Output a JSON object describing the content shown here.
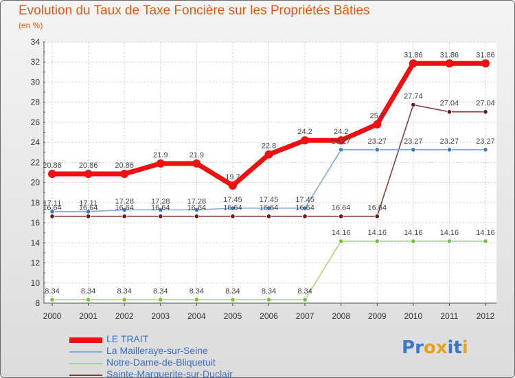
{
  "title": "Evolution du Taux de Taxe Foncière sur les Propriétés Bâties",
  "subtitle": "(en %)",
  "logo": {
    "text": "Proxiti",
    "letters": [
      "P",
      "r",
      "o",
      "x",
      "i",
      "t",
      "i"
    ],
    "colors": [
      "#3a78c8",
      "#3a78c8",
      "#e8a020",
      "#e8a020",
      "#3a78c8",
      "#3a78c8",
      "#e8a020"
    ]
  },
  "chart_data": {
    "type": "line",
    "title": "Evolution du Taux de Taxe Foncière sur les Propriétés Bâties",
    "xlabel": "",
    "ylabel": "(en %)",
    "x": [
      "2000",
      "2001",
      "2002",
      "2003",
      "2004",
      "2005",
      "2006",
      "2007",
      "2008",
      "2009",
      "2010",
      "2011",
      "2012"
    ],
    "ylim": [
      8,
      34
    ],
    "yticks": [
      8,
      10,
      12,
      14,
      16,
      18,
      20,
      22,
      24,
      26,
      28,
      30,
      32,
      34
    ],
    "grid": true,
    "legend_position": "bottom-left",
    "series": [
      {
        "name": "LE TRAIT",
        "color": "#ee1111",
        "marker": "#ee1111",
        "values": [
          20.86,
          20.86,
          20.86,
          21.9,
          21.9,
          19.7,
          22.8,
          24.2,
          24.2,
          25.8,
          31.86,
          31.86,
          31.86
        ],
        "labels": [
          "20.86",
          "20.86",
          "20.86",
          "21.9",
          "21.9",
          "19.7",
          "22.8",
          "24.2",
          "24.2",
          "25.8",
          "31.86",
          "31.86",
          "31.86"
        ]
      },
      {
        "name": "La Mailleraye-sur-Seine",
        "color": "#80a8d8",
        "marker": "#3a78c8",
        "values": [
          17.11,
          17.11,
          17.28,
          17.28,
          17.28,
          17.45,
          17.45,
          17.45,
          23.27,
          23.27,
          23.27,
          23.27,
          23.27
        ],
        "labels": [
          "17.11",
          "17.11",
          "17.28",
          "17.28",
          "17.28",
          "17.45",
          "17.45",
          "17.45",
          "23.27",
          "23.27",
          "23.27",
          "23.27",
          "23.27"
        ]
      },
      {
        "name": "Notre-Dame-de-Bliquetuit",
        "color": "#a8d878",
        "marker": "#78c040",
        "values": [
          8.34,
          8.34,
          8.34,
          8.34,
          8.34,
          8.34,
          8.34,
          8.34,
          14.16,
          14.16,
          14.16,
          14.16,
          14.16
        ],
        "labels": [
          "8.34",
          "8.34",
          "8.34",
          "8.34",
          "8.34",
          "8.34",
          "8.34",
          "8.34",
          "14.16",
          "14.16",
          "14.16",
          "14.16",
          "14.16"
        ]
      },
      {
        "name": "Sainte-Marguerite-sur-Duclair",
        "color": "#8a3a3a",
        "marker": "#6a1a1a",
        "values": [
          16.64,
          16.64,
          16.64,
          16.64,
          16.64,
          16.64,
          16.64,
          16.64,
          16.64,
          16.64,
          27.74,
          27.04,
          27.04
        ],
        "labels": [
          "16.64",
          "16.64",
          "16.64",
          "16.64",
          "16.64",
          "16.64",
          "16.64",
          "16.64",
          "16.64",
          "16.64",
          "27.74",
          "27.04",
          "27.04"
        ]
      }
    ]
  }
}
